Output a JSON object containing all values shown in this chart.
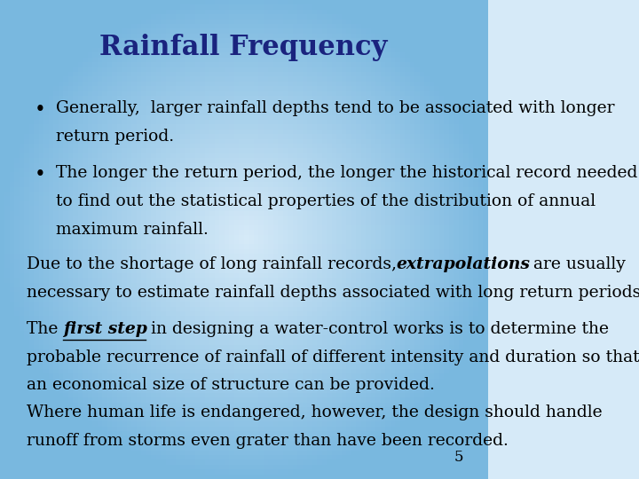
{
  "title": "Rainfall Frequency",
  "title_color": "#1a237e",
  "title_fontsize": 22,
  "bg_color_center": "#d6eaf8",
  "body_fontsize": 13.5,
  "bullet1_line1": "Generally,  larger rainfall depths tend to be associated with longer",
  "bullet1_line2": "return period.",
  "bullet2_line1": "The longer the return period, the longer the historical record needed",
  "bullet2_line2": "to find out the statistical properties of the distribution of annual",
  "bullet2_line3": "maximum rainfall.",
  "para1_pre": "Due to the shortage of long rainfall records, ",
  "para1_bold_italic": "extrapolations",
  "para1_post": " are usually",
  "para1_line2": "necessary to estimate rainfall depths associated with long return periods.",
  "para2_pre": "The ",
  "para2_bold_underline": "first step",
  "para2_post": " in designing a water-control works is to determine the",
  "para2_line2": "probable recurrence of rainfall of different intensity and duration so that",
  "para2_line3": "an economical size of structure can be provided.",
  "para3_line1": "Where human life is endangered, however, the design should handle",
  "para3_line2": "runoff from storms even grater than have been recorded.",
  "page_number": "5"
}
